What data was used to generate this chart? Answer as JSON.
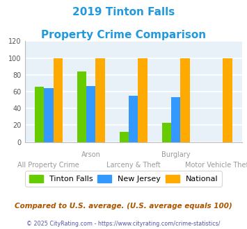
{
  "title_line1": "2019 Tinton Falls",
  "title_line2": "Property Crime Comparison",
  "categories": [
    "All Property Crime",
    "Arson",
    "Larceny & Theft",
    "Burglary",
    "Motor Vehicle Theft"
  ],
  "x_labels_top": {
    "1": "Arson",
    "3": "Burglary"
  },
  "x_labels_bottom": {
    "0": "All Property Crime",
    "2": "Larceny & Theft",
    "4": "Motor Vehicle Theft"
  },
  "tinton_falls": [
    66,
    84,
    12,
    23,
    0
  ],
  "new_jersey": [
    64,
    67,
    55,
    53,
    0
  ],
  "national": [
    100,
    100,
    100,
    100,
    100
  ],
  "bar_colors": {
    "tinton_falls": "#66cc00",
    "new_jersey": "#3399ff",
    "national": "#ffaa00"
  },
  "ylim": [
    0,
    120
  ],
  "yticks": [
    0,
    20,
    40,
    60,
    80,
    100,
    120
  ],
  "legend_labels": [
    "Tinton Falls",
    "New Jersey",
    "National"
  ],
  "footnote1": "Compared to U.S. average. (U.S. average equals 100)",
  "footnote2": "© 2025 CityRating.com - https://www.cityrating.com/crime-statistics/",
  "title_color": "#2299dd",
  "footnote1_color": "#aa5500",
  "footnote2_color": "#5555aa",
  "bg_color": "#e8f0f8",
  "grid_color": "#ffffff",
  "bar_width": 0.22
}
